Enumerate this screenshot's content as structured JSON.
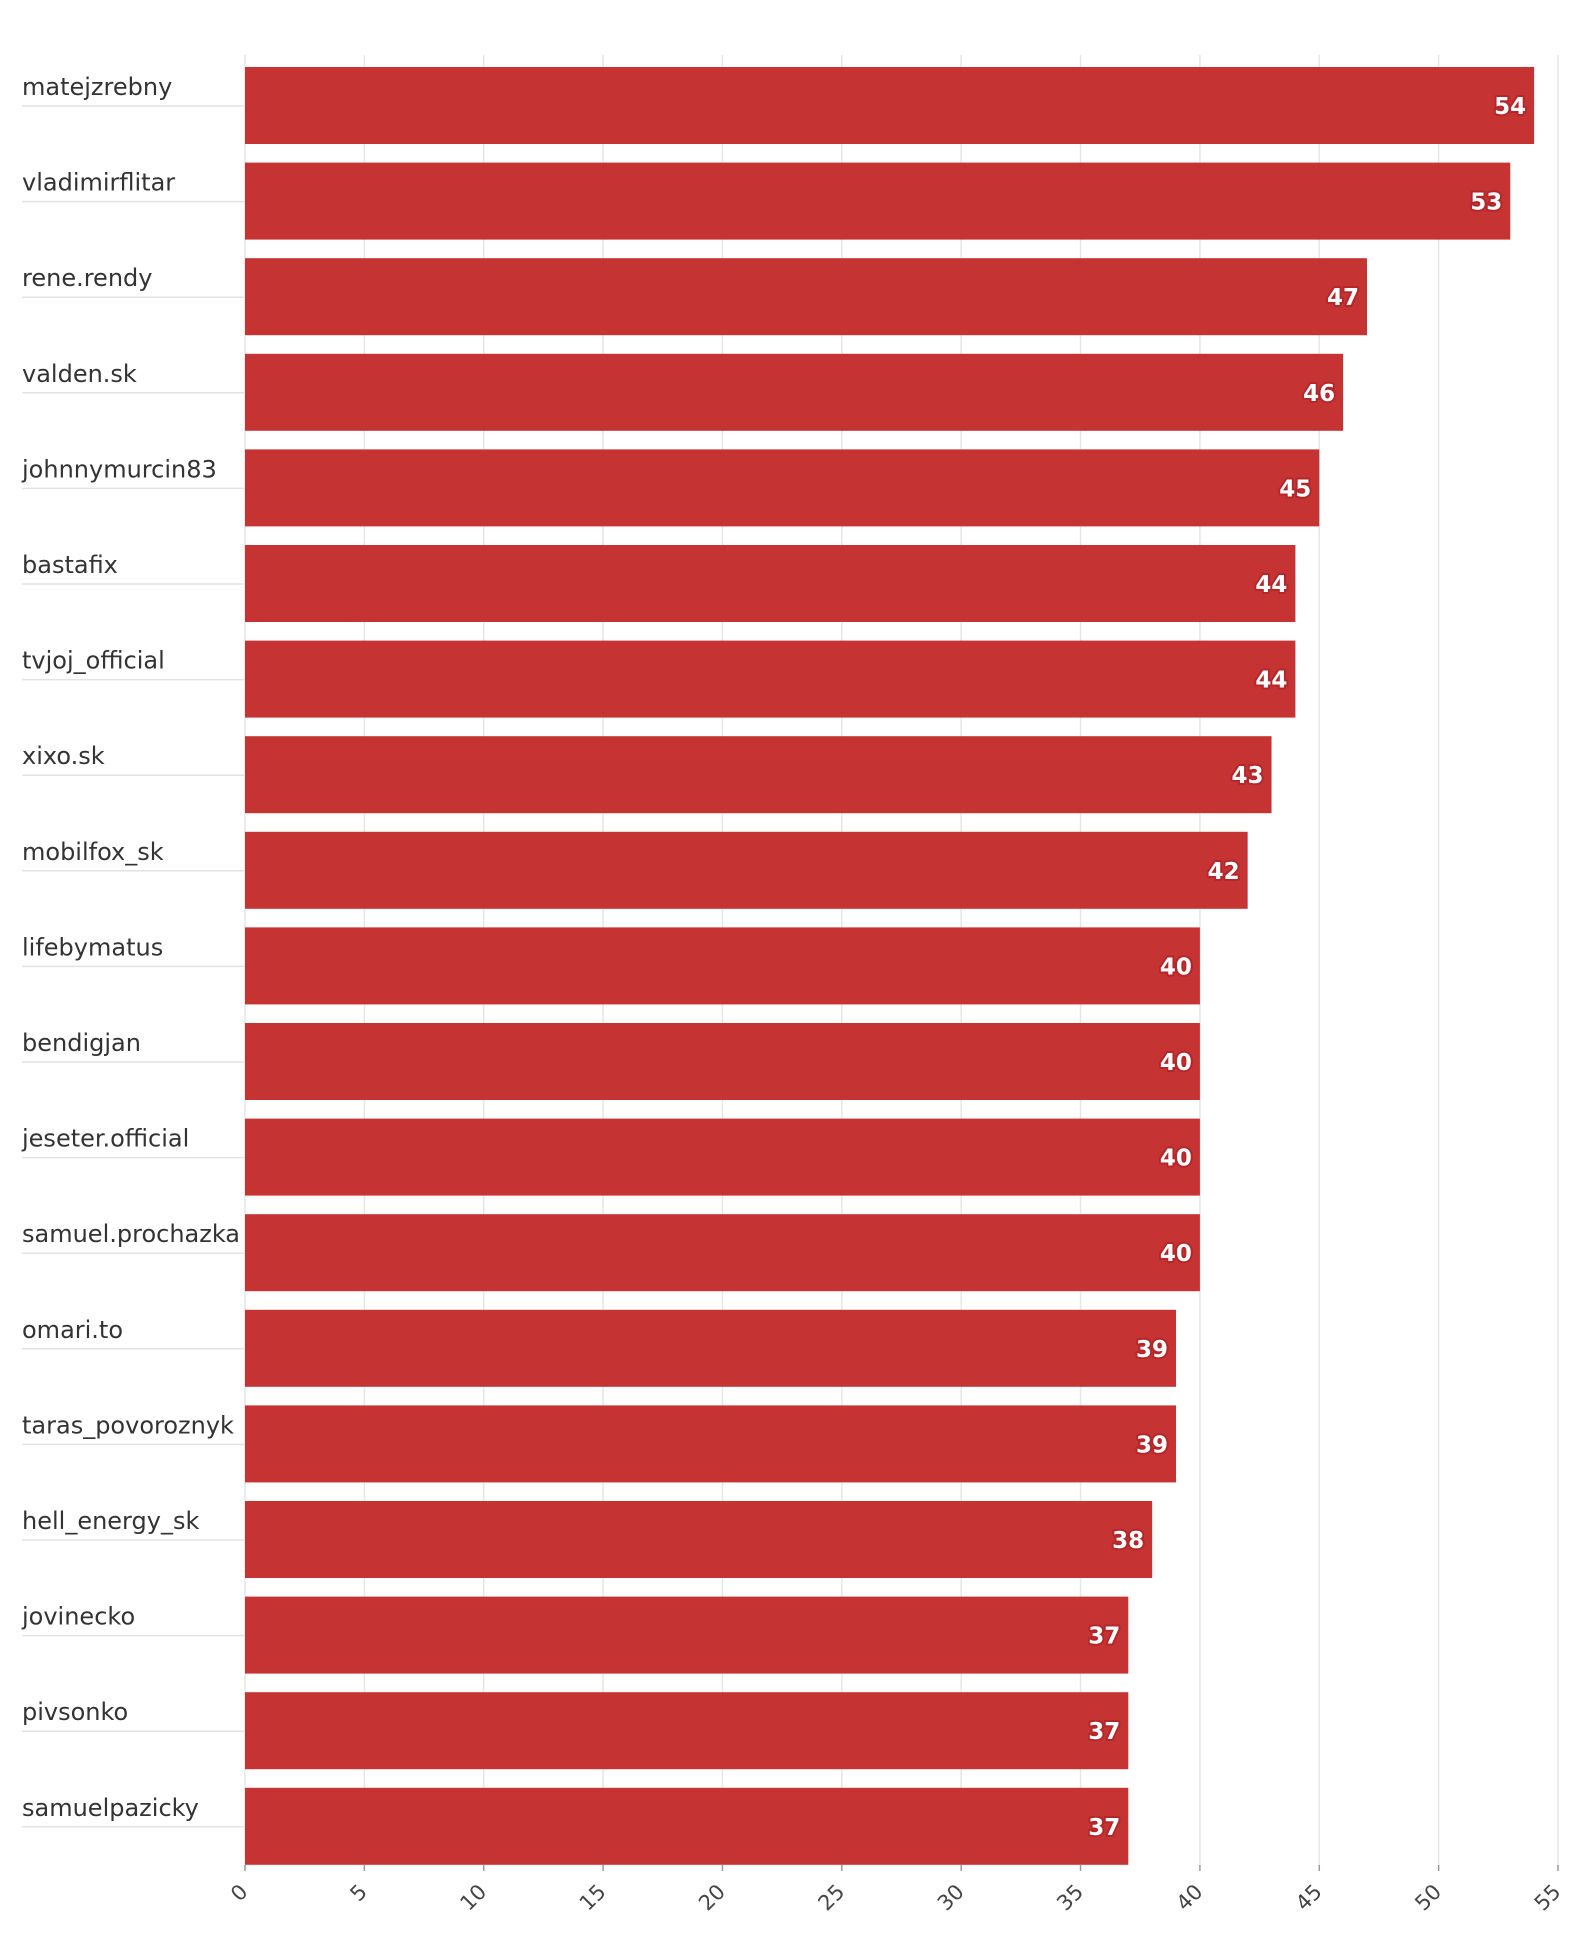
{
  "chart_data": {
    "type": "bar",
    "orientation": "horizontal",
    "categories": [
      "matejzrebny",
      "vladimirflitar",
      "rene.rendy",
      "valden.sk",
      "johnnymurcin83",
      "bastafix",
      "tvjoj_official",
      "xixo.sk",
      "mobilfox_sk",
      "lifebymatus",
      "bendigjan",
      "jeseter.official",
      "samuel.prochazka",
      "omari.to",
      "taras_povoroznyk",
      "hell_energy_sk",
      "jovinecko",
      "pivsonko",
      "samuelpazicky"
    ],
    "values": [
      54,
      53,
      47,
      46,
      45,
      44,
      44,
      43,
      42,
      40,
      40,
      40,
      40,
      39,
      39,
      38,
      37,
      37,
      37
    ],
    "value_labels": [
      "54",
      "53",
      "47",
      "46",
      "45",
      "44",
      "44",
      "43",
      "42",
      "40",
      "40",
      "40",
      "40",
      "39",
      "39",
      "38",
      "37",
      "37",
      "37"
    ],
    "x_ticks": [
      "0",
      "5",
      "10",
      "15",
      "20",
      "25",
      "30",
      "35",
      "40",
      "45",
      "50",
      "55"
    ],
    "xlim": [
      0,
      55
    ],
    "grid": true,
    "legend": "none",
    "bar_color": "#c63333",
    "label_outline_color": "#b3262a",
    "grid_color": "#e6e6e6"
  }
}
